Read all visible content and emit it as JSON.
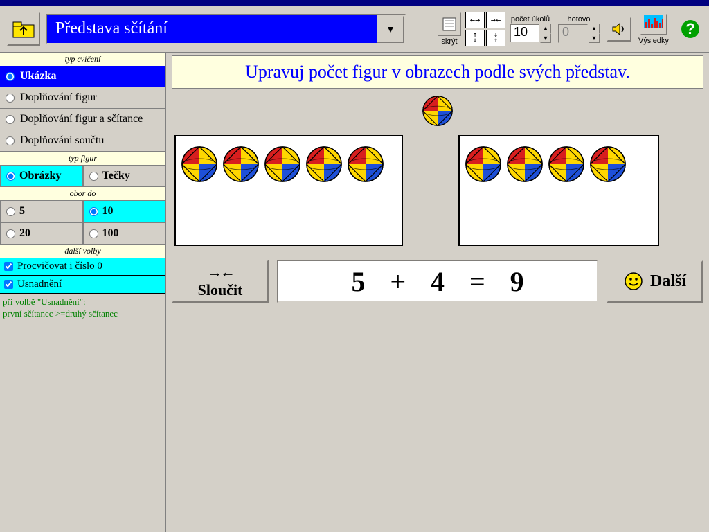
{
  "toolbar": {
    "topic": "Představa sčítání",
    "hide_label": "skrýt",
    "tasks_label": "počet úkolů",
    "tasks_value": "10",
    "done_label": "hotovo",
    "done_value": "0",
    "results_label": "Výsledky"
  },
  "sidebar": {
    "exercise_type_hdr": "typ cvičení",
    "exercise_types": [
      "Ukázka",
      "Doplňování figur",
      "Doplňování figur a sčítance",
      "Doplňování součtu"
    ],
    "exercise_selected": 0,
    "figure_type_hdr": "typ figur",
    "figure_types": [
      "Obrázky",
      "Tečky"
    ],
    "figure_selected": 0,
    "range_hdr": "obor do",
    "ranges": [
      "5",
      "10",
      "20",
      "100"
    ],
    "range_selected": 1,
    "options_hdr": "další volby",
    "opt_zero": "Procvičovat i číslo 0",
    "opt_ease": "Usnadnění",
    "hint_line1": "při volbě \"Usnadnění\":",
    "hint_line2": "první sčítanec >=druhý sčítanec"
  },
  "content": {
    "instruction": "Upravuj počet figur v obrazech podle svých představ.",
    "left_count": 5,
    "right_count": 4,
    "merge_label": "Sloučit",
    "next_label": "Další",
    "eq": {
      "a": "5",
      "op": "+",
      "b": "4",
      "eq": "=",
      "c": "9"
    }
  },
  "colors": {
    "accent_blue": "#0000ff",
    "cyan": "#00ffff",
    "cream": "#ffffdf",
    "green": "#008000"
  }
}
